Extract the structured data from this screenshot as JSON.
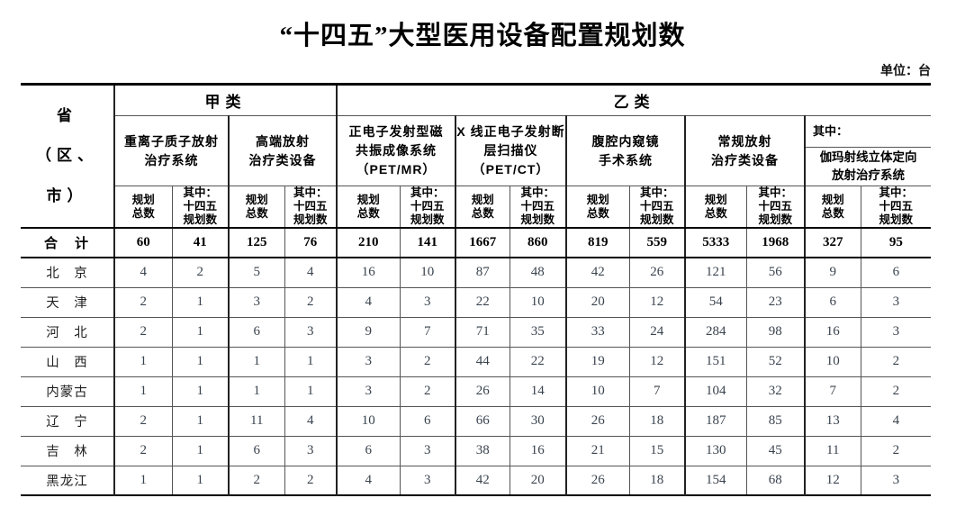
{
  "title": "“十四五”大型医用设备配置规划数",
  "unit_label": "单位：台",
  "header": {
    "province": "省\n（区、市）",
    "category_a": "甲类",
    "category_b": "乙类",
    "subcol_total": "规划\n总数",
    "subcol_145": "其中：\n十四五\n规划数",
    "groups": [
      {
        "name": "重离子质子放射\n治疗系统"
      },
      {
        "name": "高端放射\n治疗类设备"
      },
      {
        "name": "正电子发射型磁\n共振成像系统\n（PET/MR）"
      },
      {
        "name": "X 线正电子发射断\n层扫描仪\n（PET/CT）"
      },
      {
        "name": "腹腔内窥镜\n手术系统"
      },
      {
        "name": "常规放射\n治疗类设备"
      },
      {
        "name": "伽玛射线立体定向\n放射治疗系统",
        "prefix": "其中："
      }
    ]
  },
  "rows": [
    {
      "province": "合　计",
      "bold": true,
      "values": [
        60,
        41,
        125,
        76,
        210,
        141,
        1667,
        860,
        819,
        559,
        5333,
        1968,
        327,
        95
      ]
    },
    {
      "province": "北　京",
      "bold": false,
      "values": [
        4,
        2,
        5,
        4,
        16,
        10,
        87,
        48,
        42,
        26,
        121,
        56,
        9,
        6
      ]
    },
    {
      "province": "天　津",
      "bold": false,
      "values": [
        2,
        1,
        3,
        2,
        4,
        3,
        22,
        10,
        20,
        12,
        54,
        23,
        6,
        3
      ]
    },
    {
      "province": "河　北",
      "bold": false,
      "values": [
        2,
        1,
        6,
        3,
        9,
        7,
        71,
        35,
        33,
        24,
        284,
        98,
        16,
        3
      ]
    },
    {
      "province": "山　西",
      "bold": false,
      "values": [
        1,
        1,
        1,
        1,
        3,
        2,
        44,
        22,
        19,
        12,
        151,
        52,
        10,
        2
      ]
    },
    {
      "province": "内蒙古",
      "bold": false,
      "values": [
        1,
        1,
        1,
        1,
        3,
        2,
        26,
        14,
        10,
        7,
        104,
        32,
        7,
        2
      ]
    },
    {
      "province": "辽　宁",
      "bold": false,
      "values": [
        2,
        1,
        11,
        4,
        10,
        6,
        66,
        30,
        26,
        18,
        187,
        85,
        13,
        4
      ]
    },
    {
      "province": "吉　林",
      "bold": false,
      "values": [
        2,
        1,
        6,
        3,
        6,
        3,
        38,
        16,
        21,
        15,
        130,
        45,
        11,
        2
      ]
    },
    {
      "province": "黑龙江",
      "bold": false,
      "values": [
        1,
        1,
        2,
        2,
        4,
        3,
        42,
        20,
        26,
        18,
        154,
        68,
        12,
        3
      ]
    }
  ]
}
